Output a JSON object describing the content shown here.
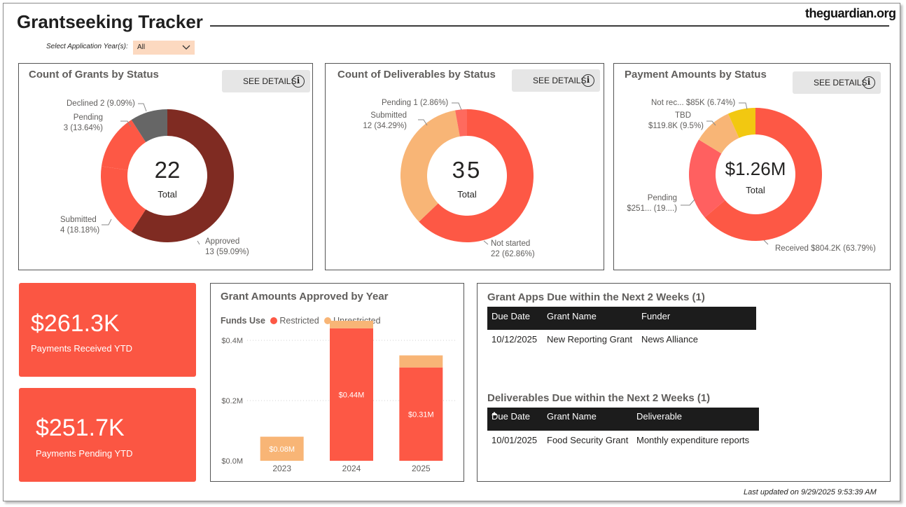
{
  "header": {
    "title": "Grantseeking Tracker",
    "brand": "theguardian.org",
    "filter_label": "Select Application Year(s):",
    "filter_value": "All",
    "last_updated": "Last updated on 9/29/2025 9:53:39 AM"
  },
  "details_label": "SEE DETAILS",
  "info_glyph": "i",
  "grants_status": {
    "title": "Count of Grants by Status",
    "center_value": "22",
    "center_label": "Total",
    "labels": {
      "declined": "Declined 2 (9.09%)",
      "pending_1": "Pending",
      "pending_2": "3 (13.64%)",
      "submitted_1": "Submitted",
      "submitted_2": "4 (18.18%)",
      "approved_1": "Approved",
      "approved_2": "13 (59.09%)"
    }
  },
  "deliverables_status": {
    "title": "Count of Deliverables by Status",
    "center_value": "35",
    "center_label": "Total",
    "labels": {
      "pending": "Pending 1 (2.86%)",
      "submitted_1": "Submitted",
      "submitted_2": "12 (34.29%)",
      "not_started_1": "Not started",
      "not_started_2": "22 (62.86%)"
    }
  },
  "payments_status": {
    "title": "Payment Amounts by Status",
    "center_value": "$1.26M",
    "center_label": "Total",
    "labels": {
      "not_received": "Not rec... $85K (6.74%)",
      "tbd_1": "TBD",
      "tbd_2": "$119.8K (9.5%)",
      "pending_1": "Pending",
      "pending_2": "$251... (19....)",
      "received": "Received $804.2K (63.79%)"
    }
  },
  "kpis": {
    "received": {
      "value": "$261.3K",
      "label": "Payments Received YTD"
    },
    "pending": {
      "value": "$251.7K",
      "label": "Payments Pending YTD"
    }
  },
  "bar_chart": {
    "title": "Grant Amounts Approved by Year",
    "legend_title": "Funds Use",
    "legend_restricted": "Restricted",
    "legend_unrestricted": "Unrestricted"
  },
  "grant_apps": {
    "title": "Grant Apps Due within the Next 2 Weeks (1)",
    "columns": [
      "Due Date",
      "Grant Name",
      "Funder"
    ],
    "rows": [
      [
        "10/12/2025",
        "New Reporting Grant",
        "News Alliance"
      ]
    ]
  },
  "deliverables_due": {
    "title": "Deliverables Due within the Next 2 Weeks (1)",
    "columns": [
      "Due Date",
      "Grant Name",
      "Deliverable"
    ],
    "rows": [
      [
        "10/01/2025",
        "Food Security Grant",
        "Monthly expenditure reports"
      ]
    ]
  },
  "colors": {
    "red": "#fd5845",
    "dark_red": "#7f2b22",
    "gray": "#666666",
    "peach": "#f8b576",
    "pink": "#ff6060",
    "yellow": "#f2c811",
    "light_red": "#fe6a5e"
  },
  "chart_data": [
    {
      "type": "pie",
      "title": "Count of Grants by Status",
      "slices": [
        {
          "name": "Approved",
          "value": 13,
          "color": "#7f2b22"
        },
        {
          "name": "Submitted",
          "value": 4,
          "color": "#fd5845"
        },
        {
          "name": "Pending",
          "value": 3,
          "color": "#fd5845"
        },
        {
          "name": "Declined",
          "value": 2,
          "color": "#666666"
        }
      ]
    },
    {
      "type": "pie",
      "title": "Count of Deliverables by Status",
      "slices": [
        {
          "name": "Not started",
          "value": 22,
          "color": "#fd5845"
        },
        {
          "name": "Submitted",
          "value": 12,
          "color": "#f8b576"
        },
        {
          "name": "Pending",
          "value": 1,
          "color": "#fe6a5e"
        }
      ]
    },
    {
      "type": "pie",
      "title": "Payment Amounts by Status",
      "slices": [
        {
          "name": "Received",
          "value": 804.2,
          "color": "#fd5845"
        },
        {
          "name": "Pending",
          "value": 251.7,
          "color": "#ff6060"
        },
        {
          "name": "TBD",
          "value": 119.8,
          "color": "#f8b576"
        },
        {
          "name": "Not rec...",
          "value": 85,
          "color": "#f2c811"
        }
      ]
    },
    {
      "type": "bar",
      "title": "Grant Amounts Approved by Year",
      "categories": [
        "2023",
        "2024",
        "2025"
      ],
      "series": [
        {
          "name": "Restricted",
          "values": [
            0,
            0.44,
            0.31
          ],
          "color": "#fd5845"
        },
        {
          "name": "Unrestricted",
          "values": [
            0.08,
            0.025,
            0.04
          ],
          "color": "#f8b576"
        }
      ],
      "data_labels": [
        "$0.08M",
        "$0.44M",
        "$0.31M"
      ],
      "y_ticks": [
        "$0.0M",
        "$0.2M",
        "$0.4M"
      ],
      "ylim": [
        0,
        0.5
      ],
      "legend_position": "top-left"
    }
  ]
}
